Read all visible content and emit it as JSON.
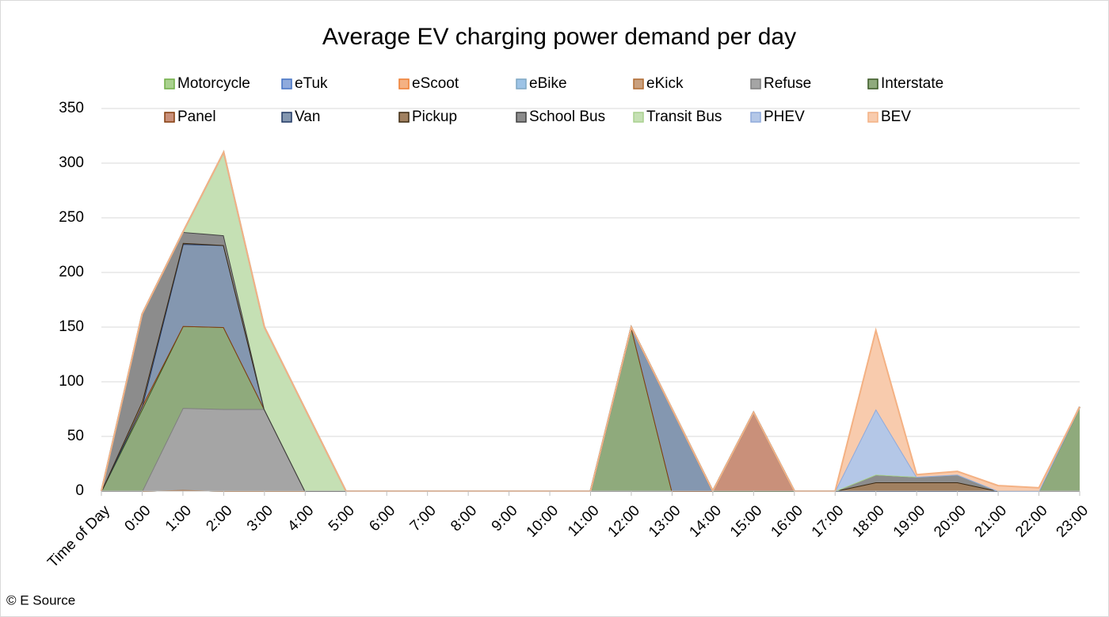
{
  "chart_data": {
    "type": "stacked_area",
    "title": "Average EV charging power demand per day",
    "source": "© E Source",
    "categories": [
      "Time of Day",
      "0:00",
      "1:00",
      "2:00",
      "3:00",
      "4:00",
      "5:00",
      "6:00",
      "7:00",
      "8:00",
      "9:00",
      "10:00",
      "11:00",
      "12:00",
      "13:00",
      "14:00",
      "15:00",
      "16:00",
      "17:00",
      "18:00",
      "19:00",
      "20:00",
      "21:00",
      "22:00",
      "23:00"
    ],
    "series": [
      {
        "name": "Motorcycle",
        "color": "#a9d18e",
        "line": "#70ad47",
        "values": [
          0,
          0,
          1,
          0,
          0,
          0,
          0,
          0,
          0,
          0,
          0,
          0,
          0,
          0,
          0,
          0,
          0,
          0,
          0,
          0,
          0,
          0,
          0,
          0,
          0
        ]
      },
      {
        "name": "eTuk",
        "color": "#8faadc",
        "line": "#4472c4",
        "values": [
          0,
          0,
          0,
          0,
          0,
          0,
          0,
          0,
          0,
          0,
          0,
          0,
          0,
          0,
          0,
          0,
          0,
          0,
          0,
          0,
          0,
          0,
          0,
          0,
          0
        ]
      },
      {
        "name": "eScoot",
        "color": "#f4b183",
        "line": "#ed7d31",
        "values": [
          0,
          0,
          0,
          0,
          0,
          0,
          0,
          0,
          0,
          0,
          0,
          0,
          0,
          0,
          0,
          0,
          0,
          0,
          0,
          0,
          0,
          0,
          0,
          0,
          0
        ]
      },
      {
        "name": "eBike",
        "color": "#9dc3e6",
        "line": "#7fa7c4",
        "values": [
          0,
          0,
          0,
          0,
          0,
          0,
          0,
          0,
          0,
          0,
          0,
          0,
          0,
          0,
          0,
          0,
          0,
          0,
          0,
          0,
          0,
          0,
          0,
          0,
          0
        ]
      },
      {
        "name": "eKick",
        "color": "#c9a07e",
        "line": "#b06a30",
        "values": [
          0,
          0,
          0,
          0,
          0,
          0,
          0,
          0,
          0,
          0,
          0,
          0,
          0,
          0,
          0,
          0,
          0,
          0,
          0,
          0,
          0,
          0,
          0,
          0,
          0
        ]
      },
      {
        "name": "Refuse",
        "color": "#a5a5a5",
        "line": "#7f7f7f",
        "values": [
          0,
          0,
          75,
          75,
          75,
          0,
          0,
          0,
          0,
          0,
          0,
          0,
          0,
          0,
          0,
          0,
          0,
          0,
          0,
          0,
          0,
          0,
          0,
          0,
          0
        ]
      },
      {
        "name": "Interstate",
        "color": "#8faa7c",
        "line": "#385723",
        "values": [
          0,
          75,
          75,
          75,
          0,
          0,
          0,
          0,
          0,
          0,
          0,
          0,
          0,
          150,
          0,
          0,
          0,
          0,
          0,
          0,
          0,
          0,
          0,
          0,
          77
        ]
      },
      {
        "name": "Panel",
        "color": "#c9907a",
        "line": "#843c0c",
        "values": [
          0,
          3,
          0,
          0,
          0,
          0,
          0,
          0,
          0,
          0,
          0,
          0,
          0,
          0,
          0,
          0,
          72,
          0,
          0,
          0,
          0,
          0,
          0,
          0,
          0
        ]
      },
      {
        "name": "Van",
        "color": "#8497b0",
        "line": "#203864",
        "values": [
          0,
          0,
          75,
          75,
          0,
          0,
          0,
          0,
          0,
          0,
          0,
          0,
          0,
          0,
          75,
          0,
          0,
          0,
          0,
          0,
          0,
          0,
          0,
          0,
          0
        ]
      },
      {
        "name": "Pickup",
        "color": "#a08060",
        "line": "#3b2810",
        "values": [
          0,
          4,
          1,
          0,
          0,
          0,
          0,
          0,
          0,
          0,
          0,
          0,
          0,
          0,
          0,
          0,
          0,
          0,
          0,
          8,
          8,
          8,
          0,
          0,
          0
        ]
      },
      {
        "name": "School Bus",
        "color": "#8c8c8c",
        "line": "#404040",
        "values": [
          0,
          80,
          10,
          9,
          0,
          0,
          0,
          0,
          0,
          0,
          0,
          0,
          0,
          0,
          0,
          0,
          0,
          0,
          0,
          7,
          5,
          7,
          0,
          0,
          0
        ]
      },
      {
        "name": "Transit Bus",
        "color": "#c5e0b4",
        "line": "#a9d18e",
        "values": [
          0,
          0,
          0,
          76,
          75,
          75,
          0,
          0,
          0,
          0,
          0,
          0,
          0,
          0,
          0,
          0,
          0,
          0,
          0,
          0,
          0,
          0,
          0,
          0,
          0
        ]
      },
      {
        "name": "PHEV",
        "color": "#b4c7e7",
        "line": "#8faadc",
        "values": [
          0,
          0,
          0,
          0,
          0,
          0,
          0,
          0,
          0,
          0,
          0,
          0,
          0,
          0,
          0,
          0,
          0,
          0,
          0,
          60,
          0,
          0,
          0,
          0,
          0
        ]
      },
      {
        "name": "BEV",
        "color": "#f8cbad",
        "line": "#f4b183",
        "values": [
          0,
          0,
          0,
          0,
          0,
          0,
          0,
          0,
          0,
          0,
          0,
          0,
          0,
          0,
          0,
          0,
          0,
          0,
          0,
          72,
          2,
          3,
          5,
          3,
          0
        ]
      }
    ],
    "ylim": [
      0,
      350
    ],
    "yticks": [
      0,
      50,
      100,
      150,
      200,
      250,
      300,
      350
    ],
    "grid": true
  }
}
